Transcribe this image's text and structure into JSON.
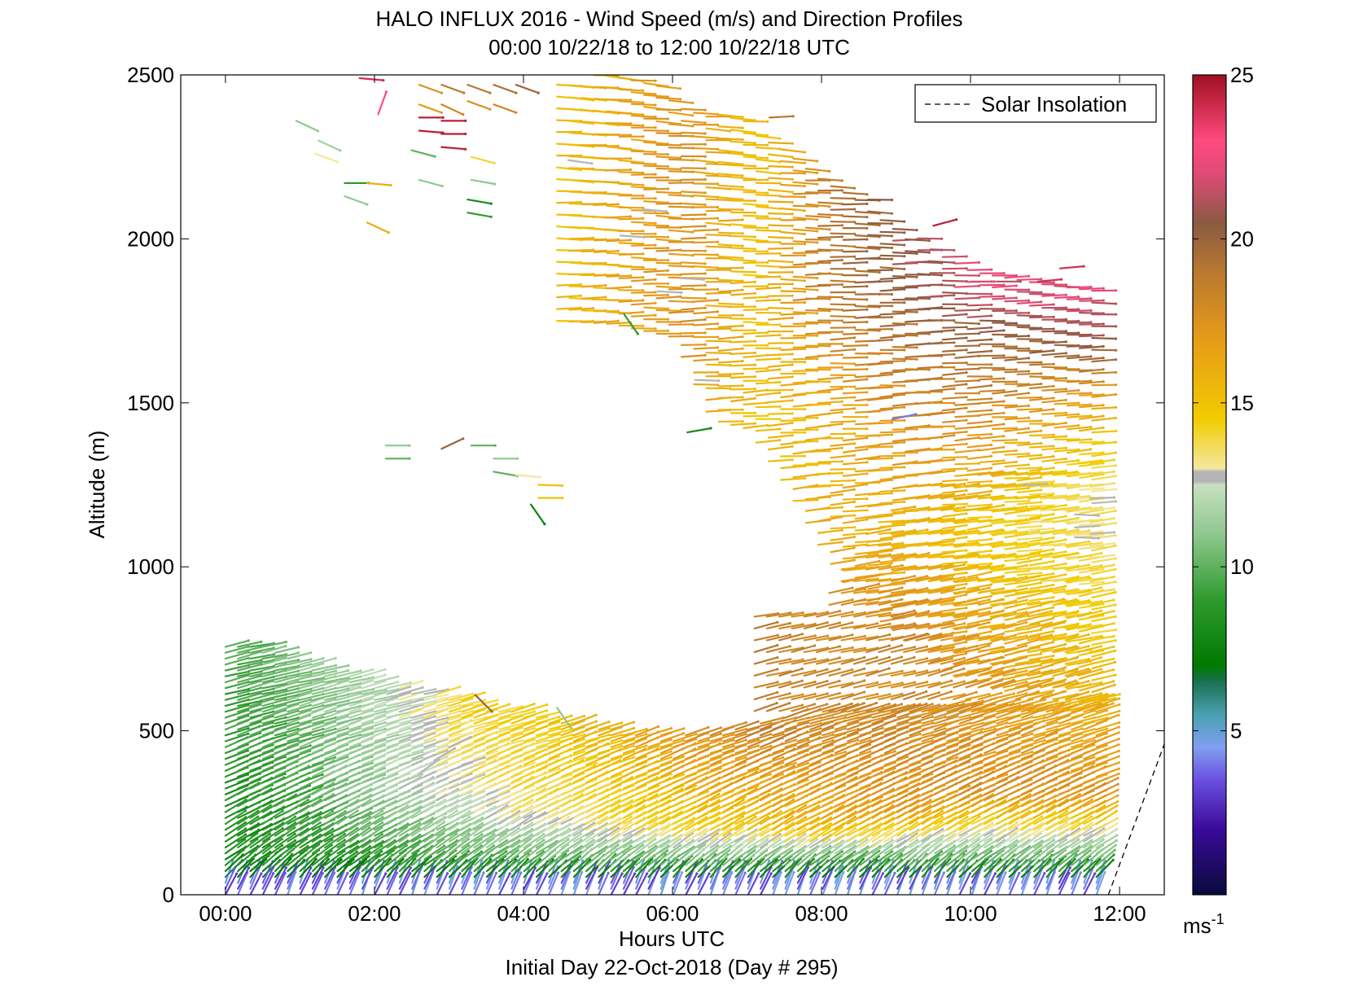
{
  "chart_data": {
    "type": "quiver",
    "title": "HALO INFLUX 2016 - Wind Speed (m/s) and Direction Profiles",
    "subtitle": "00:00 10/22/18 to 12:00 10/22/18  UTC",
    "xlabel": "Hours UTC",
    "xlabel2": "Initial Day 22-Oct-2018 (Day # 295)",
    "ylabel": "Altitude (m)",
    "xlim": [
      -0.6,
      12.6
    ],
    "ylim": [
      0,
      2500
    ],
    "x_ticks": [
      0,
      2,
      4,
      6,
      8,
      10,
      12
    ],
    "x_tick_labels": [
      "00:00",
      "02:00",
      "04:00",
      "06:00",
      "08:00",
      "10:00",
      "12:00"
    ],
    "y_ticks": [
      0,
      500,
      1000,
      1500,
      2000,
      2500
    ],
    "y_tick_labels": [
      "0",
      "500",
      "1000",
      "1500",
      "2000",
      "2500"
    ],
    "grid": false,
    "legend": {
      "position": "top-right",
      "entries": [
        "Solar Insolation"
      ]
    },
    "solar_insolation": {
      "x": [
        11.85,
        12.7
      ],
      "y": [
        0,
        520
      ]
    },
    "colorbar": {
      "min": 0,
      "max": 25,
      "ticks": [
        5,
        10,
        15,
        20,
        25
      ],
      "tick_labels": [
        "5",
        "10",
        "15",
        "20",
        "25"
      ],
      "unit_base": "ms",
      "unit_exp": "-1",
      "stops": [
        {
          "v": 0,
          "c": "#0a0a3c"
        },
        {
          "v": 2,
          "c": "#3a0a9a"
        },
        {
          "v": 3.5,
          "c": "#6a50e0"
        },
        {
          "v": 4.5,
          "c": "#7f9ff0"
        },
        {
          "v": 5.5,
          "c": "#4aa0b0"
        },
        {
          "v": 6.5,
          "c": "#1a7050"
        },
        {
          "v": 7,
          "c": "#007a00"
        },
        {
          "v": 9,
          "c": "#2f9a2f"
        },
        {
          "v": 11,
          "c": "#8fc88f"
        },
        {
          "v": 12.5,
          "c": "#c8e0c0"
        },
        {
          "v": 12.6,
          "c": "#b4b4b4"
        },
        {
          "v": 12.9,
          "c": "#b4b4b4"
        },
        {
          "v": 13,
          "c": "#f4e8a0"
        },
        {
          "v": 14.5,
          "c": "#f2cc00"
        },
        {
          "v": 17,
          "c": "#e69a1a"
        },
        {
          "v": 19,
          "c": "#b87830"
        },
        {
          "v": 20.5,
          "c": "#8a5a42"
        },
        {
          "v": 22,
          "c": "#e04a78"
        },
        {
          "v": 23,
          "c": "#ff4a80"
        },
        {
          "v": 25,
          "c": "#a01020"
        }
      ]
    },
    "speed_gradient": [
      {
        "t": 0,
        "speeds": [
          [
            0,
            4
          ],
          [
            90,
            8
          ],
          [
            700,
            9.5
          ]
        ]
      },
      {
        "t": 1,
        "speeds": [
          [
            0,
            4
          ],
          [
            90,
            8.5
          ],
          [
            400,
            10
          ],
          [
            700,
            11
          ]
        ]
      },
      {
        "t": 2,
        "speeds": [
          [
            0,
            4
          ],
          [
            90,
            9
          ],
          [
            300,
            11.5
          ],
          [
            560,
            12
          ]
        ]
      },
      {
        "t": 3,
        "speeds": [
          [
            0,
            4
          ],
          [
            90,
            9.5
          ],
          [
            300,
            12.8
          ],
          [
            550,
            14
          ]
        ]
      },
      {
        "t": 4,
        "speeds": [
          [
            0,
            4
          ],
          [
            90,
            10
          ],
          [
            250,
            13.5
          ],
          [
            500,
            14.5
          ]
        ]
      },
      {
        "t": 5,
        "speeds": [
          [
            0,
            4
          ],
          [
            90,
            10
          ],
          [
            200,
            13.5
          ],
          [
            500,
            16
          ]
        ]
      },
      {
        "t": 6,
        "speeds": [
          [
            0,
            4
          ],
          [
            90,
            10
          ],
          [
            200,
            14.5
          ],
          [
            500,
            17.5
          ]
        ]
      },
      {
        "t": 7,
        "speeds": [
          [
            0,
            4
          ],
          [
            90,
            10
          ],
          [
            200,
            15
          ],
          [
            500,
            18.5
          ],
          [
            850,
            18.5
          ],
          [
            1300,
            15
          ]
        ]
      },
      {
        "t": 8,
        "speeds": [
          [
            0,
            4
          ],
          [
            90,
            10
          ],
          [
            200,
            16
          ],
          [
            500,
            18
          ],
          [
            800,
            18
          ],
          [
            1100,
            16
          ],
          [
            1500,
            16
          ],
          [
            1800,
            19
          ],
          [
            2200,
            19
          ]
        ]
      },
      {
        "t": 9,
        "speeds": [
          [
            0,
            4
          ],
          [
            90,
            10
          ],
          [
            250,
            17
          ],
          [
            500,
            18
          ],
          [
            800,
            18
          ],
          [
            1100,
            15.5
          ],
          [
            1500,
            18
          ],
          [
            1800,
            20
          ],
          [
            2000,
            21
          ]
        ]
      },
      {
        "t": 10,
        "speeds": [
          [
            0,
            4
          ],
          [
            90,
            10
          ],
          [
            300,
            17.5
          ],
          [
            700,
            17
          ],
          [
            1100,
            14.5
          ],
          [
            1400,
            17
          ],
          [
            1700,
            20
          ],
          [
            1850,
            22
          ]
        ]
      },
      {
        "t": 11.7,
        "speeds": [
          [
            0,
            4
          ],
          [
            90,
            10
          ],
          [
            300,
            17.5
          ],
          [
            700,
            15
          ],
          [
            1000,
            13.5
          ],
          [
            1250,
            13
          ],
          [
            1500,
            16
          ],
          [
            1700,
            21
          ],
          [
            1850,
            22
          ]
        ]
      }
    ],
    "direction_gradient": [
      {
        "alt": 0,
        "deg": 60
      },
      {
        "alt": 100,
        "deg": 35
      },
      {
        "alt": 300,
        "deg": 25
      },
      {
        "alt": 600,
        "deg": 15
      },
      {
        "alt": 1000,
        "deg": 8
      },
      {
        "alt": 1500,
        "deg": 3
      },
      {
        "alt": 2500,
        "deg": -5
      }
    ],
    "barb_length_hours": 0.32,
    "low_level_columns": {
      "t_start": 0,
      "t_end": 11.7,
      "dt": 0.167
    },
    "low_level_top": [
      [
        0,
        760
      ],
      [
        0.5,
        760
      ],
      [
        1,
        720
      ],
      [
        1.5,
        680
      ],
      [
        2,
        660
      ],
      [
        2.5,
        620
      ],
      [
        3,
        610
      ],
      [
        3.5,
        570
      ],
      [
        4,
        560
      ],
      [
        4.5,
        530
      ],
      [
        5,
        510
      ],
      [
        5.5,
        500
      ],
      [
        6,
        480
      ],
      [
        6.5,
        500
      ],
      [
        7,
        520
      ],
      [
        7.5,
        540
      ],
      [
        8,
        560
      ],
      [
        12,
        600
      ]
    ],
    "upper_region": {
      "t_start": 4.45,
      "t_end": 11.7,
      "dt": 0.167,
      "top": [
        [
          4.45,
          2500
        ],
        [
          5.8,
          2500
        ],
        [
          6,
          2400
        ],
        [
          7,
          2370
        ],
        [
          8,
          2200
        ],
        [
          8.5,
          2150
        ],
        [
          9,
          2050
        ],
        [
          10,
          1920
        ],
        [
          10.5,
          1880
        ],
        [
          11,
          1860
        ],
        [
          11.7,
          1840
        ]
      ],
      "bottom": [
        [
          4.45,
          1750
        ],
        [
          5.2,
          1740
        ],
        [
          6,
          1700
        ],
        [
          6.5,
          1450
        ],
        [
          7,
          1420
        ],
        [
          7.5,
          1250
        ],
        [
          8,
          1050
        ],
        [
          8.3,
          950
        ],
        [
          8.5,
          880
        ],
        [
          9,
          800
        ],
        [
          9.5,
          700
        ],
        [
          10,
          640
        ],
        [
          10.5,
          620
        ],
        [
          11,
          600
        ],
        [
          11.7,
          580
        ]
      ]
    },
    "mid_region": {
      "t_start": 7.1,
      "t_end": 11.7,
      "dt": 0.167,
      "top": [
        [
          7.1,
          880
        ],
        [
          8,
          880
        ],
        [
          8.2,
          1000
        ],
        [
          9,
          1200
        ],
        [
          10,
          1300
        ],
        [
          11.7,
          1320
        ]
      ],
      "bottom": [
        [
          7.1,
          560
        ],
        [
          11.7,
          560
        ]
      ]
    },
    "scattered_barbs": [
      {
        "t": 0.95,
        "alt": 2360,
        "spd": 11,
        "dir": -25
      },
      {
        "t": 1.25,
        "alt": 2300,
        "spd": 11.5,
        "dir": -25
      },
      {
        "t": 1.2,
        "alt": 2260,
        "spd": 13,
        "dir": -20
      },
      {
        "t": 1.8,
        "alt": 2490,
        "spd": 24,
        "dir": -5
      },
      {
        "t": 2.05,
        "alt": 2380,
        "spd": 23,
        "dir": 70
      },
      {
        "t": 2.6,
        "alt": 2370,
        "spd": 24.5,
        "dir": 0
      },
      {
        "t": 2.9,
        "alt": 2360,
        "spd": 24.5,
        "dir": 0
      },
      {
        "t": 2.6,
        "alt": 2330,
        "spd": 24.5,
        "dir": -5
      },
      {
        "t": 2.9,
        "alt": 2320,
        "spd": 24.5,
        "dir": 0
      },
      {
        "t": 2.9,
        "alt": 2280,
        "spd": 24.5,
        "dir": -5
      },
      {
        "t": 2.5,
        "alt": 2270,
        "spd": 10,
        "dir": -15
      },
      {
        "t": 3.3,
        "alt": 2250,
        "spd": 14,
        "dir": -15
      },
      {
        "t": 1.6,
        "alt": 2170,
        "spd": 9,
        "dir": 0
      },
      {
        "t": 1.9,
        "alt": 2170,
        "spd": 16,
        "dir": -5
      },
      {
        "t": 2.6,
        "alt": 2180,
        "spd": 11,
        "dir": -15
      },
      {
        "t": 3.3,
        "alt": 2180,
        "spd": 11,
        "dir": -10
      },
      {
        "t": 3.25,
        "alt": 2120,
        "spd": 8,
        "dir": -10
      },
      {
        "t": 3.25,
        "alt": 2080,
        "spd": 9,
        "dir": -10
      },
      {
        "t": 1.6,
        "alt": 2130,
        "spd": 11,
        "dir": -20
      },
      {
        "t": 1.9,
        "alt": 2050,
        "spd": 16,
        "dir": -25
      },
      {
        "t": 2.6,
        "alt": 2470,
        "spd": 17.5,
        "dir": -20
      },
      {
        "t": 2.9,
        "alt": 2470,
        "spd": 19,
        "dir": -20
      },
      {
        "t": 3.25,
        "alt": 2470,
        "spd": 19,
        "dir": -20
      },
      {
        "t": 3.6,
        "alt": 2470,
        "spd": 19.5,
        "dir": -20
      },
      {
        "t": 3.9,
        "alt": 2470,
        "spd": 20,
        "dir": -20
      },
      {
        "t": 2.6,
        "alt": 2410,
        "spd": 17,
        "dir": -20
      },
      {
        "t": 2.9,
        "alt": 2410,
        "spd": 18,
        "dir": -25
      },
      {
        "t": 3.25,
        "alt": 2420,
        "spd": 17.5,
        "dir": -20
      },
      {
        "t": 3.6,
        "alt": 2410,
        "spd": 18,
        "dir": -20
      },
      {
        "t": 2.15,
        "alt": 1370,
        "spd": 11,
        "dir": 0
      },
      {
        "t": 2.15,
        "alt": 1330,
        "spd": 10,
        "dir": 0
      },
      {
        "t": 2.9,
        "alt": 1360,
        "spd": 20,
        "dir": 25
      },
      {
        "t": 3.3,
        "alt": 1370,
        "spd": 10,
        "dir": 0
      },
      {
        "t": 3.6,
        "alt": 1330,
        "spd": 11,
        "dir": 0
      },
      {
        "t": 3.6,
        "alt": 1290,
        "spd": 10,
        "dir": -10
      },
      {
        "t": 3.9,
        "alt": 1280,
        "spd": 13,
        "dir": -5
      },
      {
        "t": 4.2,
        "alt": 1250,
        "spd": 15,
        "dir": -2
      },
      {
        "t": 4.2,
        "alt": 1210,
        "spd": 15,
        "dir": 0
      },
      {
        "t": 4.1,
        "alt": 1190,
        "spd": 7.5,
        "dir": -55
      },
      {
        "t": 3.35,
        "alt": 610,
        "spd": 20,
        "dir": -45
      },
      {
        "t": 4.45,
        "alt": 570,
        "spd": 11,
        "dir": -55
      },
      {
        "t": 5.35,
        "alt": 1770,
        "spd": 9,
        "dir": -55
      },
      {
        "t": 6.2,
        "alt": 1410,
        "spd": 8,
        "dir": 10
      },
      {
        "t": 7.3,
        "alt": 2370,
        "spd": 19,
        "dir": 3
      },
      {
        "t": 8.95,
        "alt": 1450,
        "spd": 4,
        "dir": 12
      },
      {
        "t": 9.5,
        "alt": 2040,
        "spd": 24.5,
        "dir": 15
      },
      {
        "t": 10.0,
        "alt": 1870,
        "spd": 22,
        "dir": 0
      },
      {
        "t": 10.35,
        "alt": 1870,
        "spd": 21,
        "dir": 0
      },
      {
        "t": 10.9,
        "alt": 1870,
        "spd": 24,
        "dir": 5
      },
      {
        "t": 11.2,
        "alt": 1910,
        "spd": 24,
        "dir": 5
      }
    ],
    "grey_band_barbs": [
      {
        "t": 4.6,
        "alt": 2240,
        "spd": 12.7,
        "dir": -8
      },
      {
        "t": 5.6,
        "alt": 2090,
        "spd": 12.7,
        "dir": -5
      },
      {
        "t": 5.3,
        "alt": 2010,
        "spd": 12.7,
        "dir": -4
      },
      {
        "t": 6.1,
        "alt": 1880,
        "spd": 12.7,
        "dir": -3
      },
      {
        "t": 5.8,
        "alt": 1840,
        "spd": 12.7,
        "dir": -3
      },
      {
        "t": 6.3,
        "alt": 1570,
        "spd": 12.7,
        "dir": -2
      },
      {
        "t": 10.7,
        "alt": 1250,
        "spd": 12.7,
        "dir": 2
      },
      {
        "t": 11.4,
        "alt": 1160,
        "spd": 12.7,
        "dir": -3
      },
      {
        "t": 11.4,
        "alt": 1120,
        "spd": 12.7,
        "dir": 4
      },
      {
        "t": 11.4,
        "alt": 1090,
        "spd": 12.7,
        "dir": -2
      },
      {
        "t": 2.8,
        "alt": 410,
        "spd": 12.7,
        "dir": 30
      },
      {
        "t": 3.0,
        "alt": 450,
        "spd": 12.7,
        "dir": 25
      },
      {
        "t": 2.6,
        "alt": 370,
        "spd": 12.7,
        "dir": 35
      }
    ]
  }
}
